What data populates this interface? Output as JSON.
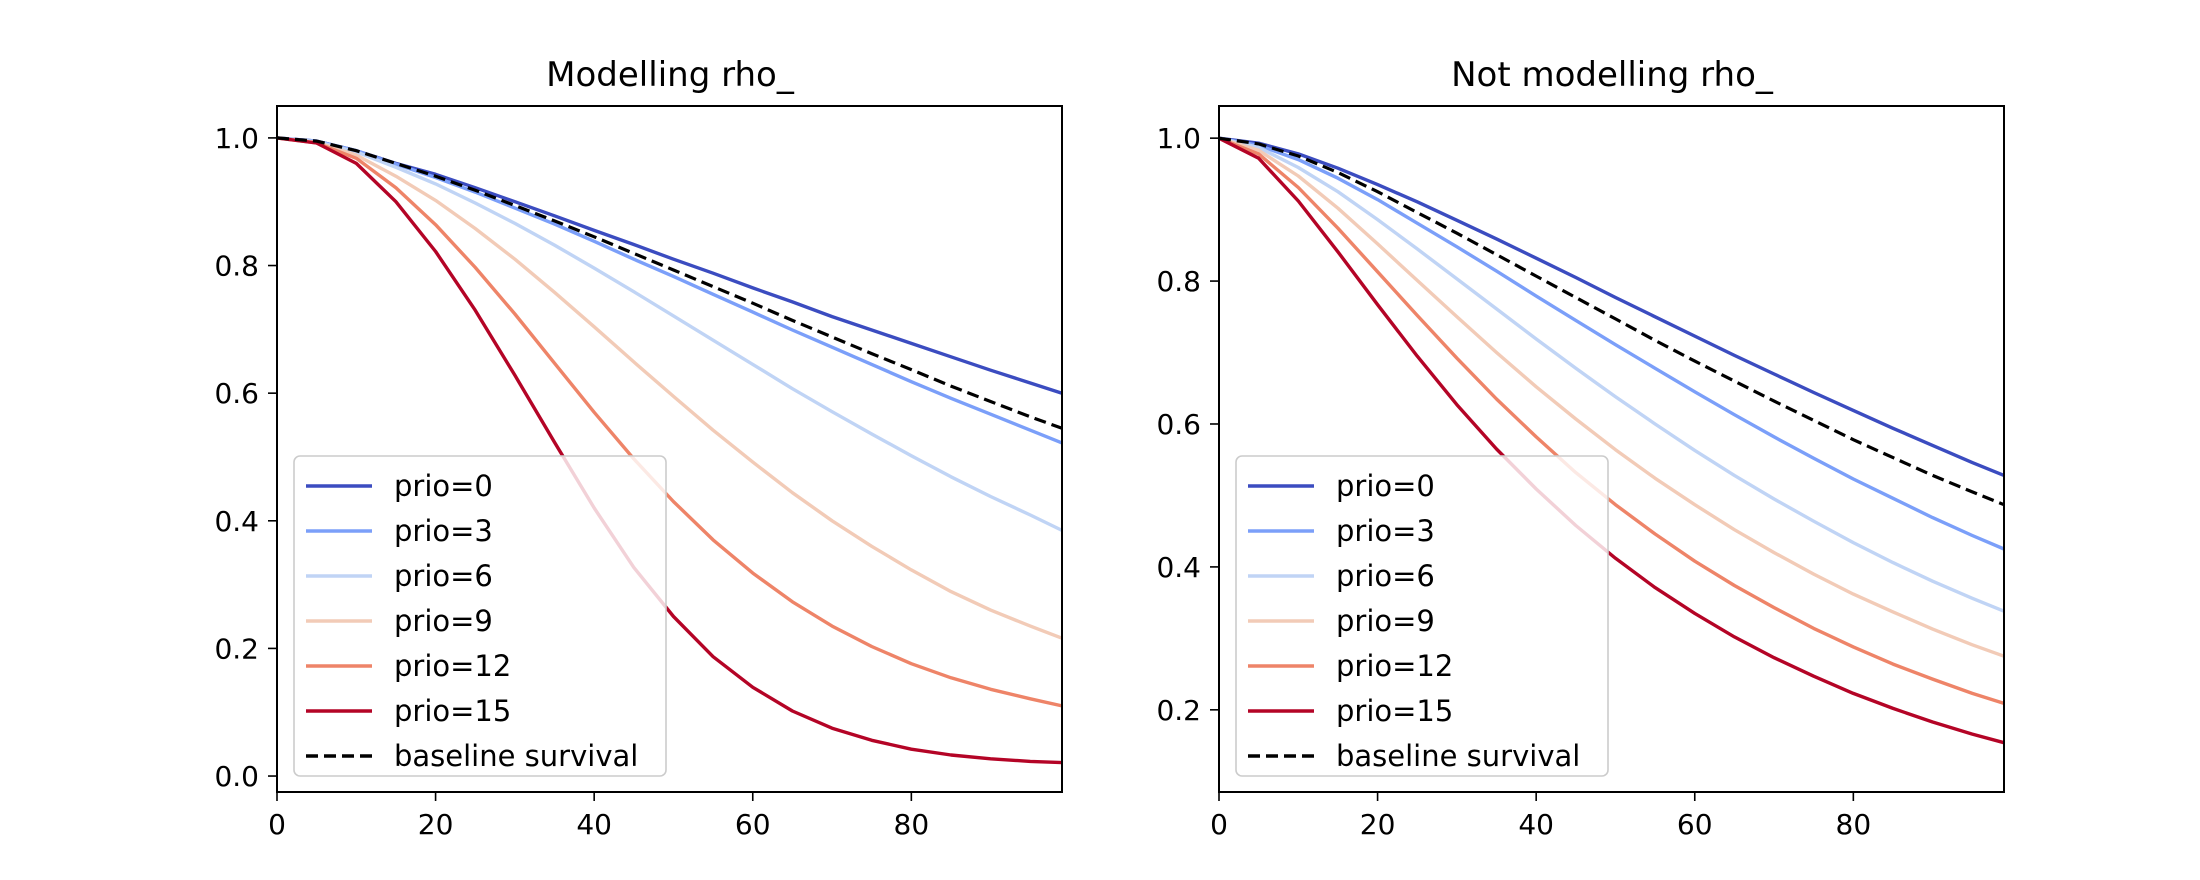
{
  "chart_data": [
    {
      "type": "line",
      "title": "Modelling rho_",
      "xlabel": "",
      "ylabel": "",
      "xlim": [
        0,
        99
      ],
      "ylim": [
        -0.025,
        1.05
      ],
      "x_ticks": [
        0,
        20,
        40,
        60,
        80
      ],
      "x_tick_labels": [
        "0",
        "20",
        "40",
        "60",
        "80"
      ],
      "y_ticks": [
        0.0,
        0.2,
        0.4,
        0.6,
        0.8,
        1.0
      ],
      "y_tick_labels": [
        "0.0",
        "0.2",
        "0.4",
        "0.6",
        "0.8",
        "1.0"
      ],
      "grid": false,
      "legend_position": "lower-left",
      "x": [
        0,
        5,
        10,
        15,
        20,
        25,
        30,
        35,
        40,
        45,
        50,
        55,
        60,
        65,
        70,
        75,
        80,
        85,
        90,
        95,
        99
      ],
      "series": [
        {
          "name": "prio=0",
          "color": "#3b4cc0",
          "style": "solid",
          "values": [
            1.0,
            0.995,
            0.98,
            0.96,
            0.943,
            0.922,
            0.9,
            0.878,
            0.855,
            0.833,
            0.81,
            0.788,
            0.765,
            0.743,
            0.72,
            0.699,
            0.678,
            0.657,
            0.636,
            0.616,
            0.6
          ]
        },
        {
          "name": "prio=3",
          "color": "#7b9ff9",
          "style": "solid",
          "values": [
            1.0,
            0.995,
            0.98,
            0.959,
            0.938,
            0.915,
            0.89,
            0.865,
            0.838,
            0.81,
            0.783,
            0.755,
            0.727,
            0.699,
            0.672,
            0.645,
            0.618,
            0.592,
            0.567,
            0.542,
            0.522
          ]
        },
        {
          "name": "prio=6",
          "color": "#c0d4f5",
          "style": "solid",
          "values": [
            1.0,
            0.994,
            0.978,
            0.954,
            0.928,
            0.898,
            0.866,
            0.832,
            0.796,
            0.759,
            0.721,
            0.683,
            0.645,
            0.607,
            0.571,
            0.536,
            0.502,
            0.469,
            0.438,
            0.409,
            0.385
          ]
        },
        {
          "name": "prio=9",
          "color": "#f2cbb7",
          "style": "solid",
          "values": [
            1.0,
            0.993,
            0.973,
            0.94,
            0.902,
            0.858,
            0.81,
            0.758,
            0.704,
            0.649,
            0.595,
            0.542,
            0.492,
            0.444,
            0.4,
            0.36,
            0.323,
            0.289,
            0.26,
            0.235,
            0.216
          ]
        },
        {
          "name": "prio=12",
          "color": "#ee8468",
          "style": "solid",
          "values": [
            1.0,
            0.992,
            0.968,
            0.922,
            0.864,
            0.797,
            0.724,
            0.647,
            0.57,
            0.497,
            0.43,
            0.37,
            0.318,
            0.273,
            0.235,
            0.203,
            0.176,
            0.154,
            0.136,
            0.121,
            0.11
          ]
        },
        {
          "name": "prio=15",
          "color": "#b40426",
          "style": "solid",
          "values": [
            1.0,
            0.992,
            0.96,
            0.9,
            0.822,
            0.73,
            0.628,
            0.523,
            0.42,
            0.327,
            0.25,
            0.187,
            0.139,
            0.102,
            0.075,
            0.056,
            0.042,
            0.033,
            0.027,
            0.023,
            0.021
          ]
        },
        {
          "name": "baseline survival",
          "color": "#000000",
          "style": "dashed",
          "values": [
            1.0,
            0.995,
            0.98,
            0.96,
            0.94,
            0.918,
            0.894,
            0.87,
            0.845,
            0.819,
            0.793,
            0.767,
            0.741,
            0.714,
            0.688,
            0.662,
            0.637,
            0.611,
            0.587,
            0.563,
            0.545
          ]
        }
      ]
    },
    {
      "type": "line",
      "title": "Not modelling rho_",
      "xlabel": "",
      "ylabel": "",
      "xlim": [
        0,
        99
      ],
      "ylim": [
        0.085,
        1.045
      ],
      "x_ticks": [
        0,
        20,
        40,
        60,
        80
      ],
      "x_tick_labels": [
        "0",
        "20",
        "40",
        "60",
        "80"
      ],
      "y_ticks": [
        0.2,
        0.4,
        0.6,
        0.8,
        1.0
      ],
      "y_tick_labels": [
        "0.2",
        "0.4",
        "0.6",
        "0.8",
        "1.0"
      ],
      "grid": false,
      "legend_position": "lower-left",
      "x": [
        0,
        5,
        10,
        15,
        20,
        25,
        30,
        35,
        40,
        45,
        50,
        55,
        60,
        65,
        70,
        75,
        80,
        85,
        90,
        95,
        99
      ],
      "series": [
        {
          "name": "prio=0",
          "color": "#3b4cc0",
          "style": "solid",
          "values": [
            1.0,
            0.993,
            0.978,
            0.958,
            0.935,
            0.911,
            0.885,
            0.859,
            0.832,
            0.805,
            0.777,
            0.75,
            0.723,
            0.696,
            0.67,
            0.644,
            0.619,
            0.594,
            0.57,
            0.546,
            0.528
          ]
        },
        {
          "name": "prio=3",
          "color": "#7b9ff9",
          "style": "solid",
          "values": [
            1.0,
            0.99,
            0.97,
            0.944,
            0.914,
            0.881,
            0.848,
            0.814,
            0.779,
            0.745,
            0.711,
            0.678,
            0.645,
            0.613,
            0.582,
            0.552,
            0.523,
            0.496,
            0.469,
            0.444,
            0.425
          ]
        },
        {
          "name": "prio=6",
          "color": "#c0d4f5",
          "style": "solid",
          "values": [
            1.0,
            0.987,
            0.959,
            0.925,
            0.886,
            0.845,
            0.803,
            0.761,
            0.719,
            0.678,
            0.638,
            0.6,
            0.563,
            0.528,
            0.495,
            0.464,
            0.434,
            0.406,
            0.38,
            0.356,
            0.338
          ]
        },
        {
          "name": "prio=9",
          "color": "#f2cbb7",
          "style": "solid",
          "values": [
            1.0,
            0.983,
            0.947,
            0.902,
            0.852,
            0.801,
            0.75,
            0.7,
            0.652,
            0.607,
            0.564,
            0.524,
            0.487,
            0.452,
            0.42,
            0.39,
            0.362,
            0.337,
            0.313,
            0.291,
            0.275
          ]
        },
        {
          "name": "prio=12",
          "color": "#ee8468",
          "style": "solid",
          "values": [
            1.0,
            0.978,
            0.931,
            0.874,
            0.813,
            0.752,
            0.692,
            0.635,
            0.582,
            0.532,
            0.487,
            0.446,
            0.408,
            0.374,
            0.343,
            0.314,
            0.288,
            0.264,
            0.243,
            0.223,
            0.209
          ]
        },
        {
          "name": "prio=15",
          "color": "#b40426",
          "style": "solid",
          "values": [
            1.0,
            0.972,
            0.912,
            0.841,
            0.767,
            0.695,
            0.627,
            0.565,
            0.509,
            0.458,
            0.412,
            0.371,
            0.335,
            0.302,
            0.273,
            0.247,
            0.223,
            0.202,
            0.183,
            0.166,
            0.154
          ]
        },
        {
          "name": "baseline survival",
          "color": "#000000",
          "style": "dashed",
          "values": [
            1.0,
            0.992,
            0.975,
            0.952,
            0.925,
            0.896,
            0.867,
            0.837,
            0.807,
            0.777,
            0.747,
            0.717,
            0.688,
            0.66,
            0.632,
            0.605,
            0.578,
            0.553,
            0.528,
            0.505,
            0.487
          ]
        }
      ]
    }
  ]
}
